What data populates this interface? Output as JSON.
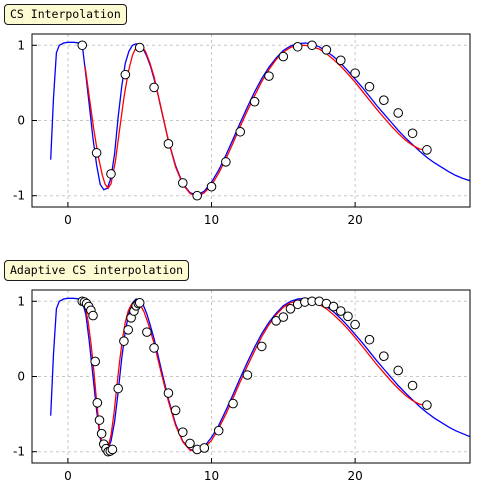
{
  "chart_data": [
    {
      "type": "line",
      "title": "CS Interpolation",
      "xlim": [
        -2.5,
        28
      ],
      "ylim": [
        -1.15,
        1.15
      ],
      "xticks": [
        0,
        10,
        20
      ],
      "xtick_labels": [
        "0",
        "10",
        "20"
      ],
      "yticks": [
        -1,
        0,
        1
      ],
      "ytick_labels": [
        "-1",
        "0",
        "1"
      ],
      "grid": true,
      "legend": "none",
      "colors": {
        "reference": "#0000ff",
        "interpolated": "#ff0000",
        "nodes": "#000000"
      },
      "series": [
        {
          "role": "reference",
          "x": [
            -1.2,
            -1.0,
            -0.8,
            -0.6,
            -0.3,
            0.0,
            0.4,
            0.8,
            1.0,
            1.25,
            1.5,
            1.75,
            2.0,
            2.25,
            2.5,
            2.75,
            3.0,
            3.25,
            3.5,
            3.75,
            4.0,
            4.25,
            4.5,
            4.75,
            5.0,
            5.25,
            5.5,
            5.75,
            6.0,
            6.25,
            6.5,
            6.75,
            7.0,
            7.5,
            8.0,
            8.5,
            9.0,
            9.5,
            10.0,
            10.5,
            11.0,
            11.5,
            12.0,
            12.5,
            13.0,
            13.5,
            14.0,
            14.5,
            15.0,
            15.5,
            16.0,
            16.5,
            17.0,
            17.5,
            18.0,
            18.5,
            19.0,
            19.5,
            20.0,
            20.5,
            21.0,
            21.5,
            22.0,
            22.5,
            23.0,
            23.5,
            24.0,
            24.5,
            25.0,
            25.5,
            26.0,
            26.5,
            27.0,
            27.5,
            28.0
          ],
          "y": [
            -0.52,
            0.3,
            0.9,
            1.0,
            1.03,
            1.04,
            1.04,
            1.03,
            1.0,
            0.6,
            0.19,
            -0.24,
            -0.59,
            -0.85,
            -0.92,
            -0.9,
            -0.76,
            -0.44,
            0.05,
            0.46,
            0.76,
            0.92,
            1.0,
            1.02,
            1.0,
            0.95,
            0.85,
            0.72,
            0.55,
            0.36,
            0.15,
            -0.06,
            -0.27,
            -0.6,
            -0.84,
            -0.96,
            -0.99,
            -0.94,
            -0.82,
            -0.66,
            -0.46,
            -0.25,
            -0.03,
            0.18,
            0.38,
            0.56,
            0.71,
            0.83,
            0.93,
            0.99,
            1.02,
            1.03,
            1.02,
            0.98,
            0.92,
            0.85,
            0.76,
            0.66,
            0.55,
            0.44,
            0.32,
            0.2,
            0.09,
            -0.02,
            -0.13,
            -0.23,
            -0.32,
            -0.41,
            -0.49,
            -0.56,
            -0.62,
            -0.68,
            -0.73,
            -0.77,
            -0.8
          ]
        },
        {
          "role": "interpolated",
          "x": [
            1.2,
            1.5,
            1.8,
            2.1,
            2.4,
            2.6,
            2.8,
            3.0,
            3.3,
            3.6,
            3.9,
            4.2,
            4.5,
            4.8,
            5.1,
            5.4,
            5.7,
            6.0,
            6.5,
            7.0,
            7.5,
            8.0,
            8.5,
            9.0,
            9.5,
            10.0,
            10.5,
            11.0,
            11.5,
            12.0,
            12.5,
            13.0,
            13.5,
            14.0,
            14.5,
            15.0,
            15.5,
            16.0,
            16.5,
            17.0,
            17.5,
            18.0,
            18.5,
            19.0,
            19.5,
            20.0,
            20.5,
            21.0,
            21.5,
            22.0,
            22.5,
            23.0,
            23.5,
            24.0,
            24.5,
            25.0
          ],
          "y": [
            0.72,
            0.3,
            -0.12,
            -0.47,
            -0.73,
            -0.85,
            -0.9,
            -0.84,
            -0.55,
            -0.12,
            0.3,
            0.64,
            0.87,
            0.99,
            1.0,
            0.92,
            0.77,
            0.58,
            0.16,
            -0.27,
            -0.62,
            -0.85,
            -0.97,
            -1.01,
            -0.96,
            -0.86,
            -0.7,
            -0.51,
            -0.3,
            -0.08,
            0.13,
            0.33,
            0.52,
            0.68,
            0.81,
            0.91,
            0.97,
            1.0,
            1.0,
            0.98,
            0.95,
            0.89,
            0.81,
            0.72,
            0.62,
            0.51,
            0.39,
            0.27,
            0.15,
            0.04,
            -0.07,
            -0.17,
            -0.26,
            -0.33,
            -0.38,
            -0.39
          ]
        },
        {
          "role": "nodes",
          "x": [
            1.0,
            2.0,
            3.0,
            4.0,
            5.0,
            6.0,
            7.0,
            8.0,
            9.0,
            10.0,
            11.0,
            12.0,
            13.0,
            14.0,
            15.0,
            16.0,
            17.0,
            18.0,
            19.0,
            20.0,
            21.0,
            22.0,
            23.0,
            24.0,
            25.0
          ],
          "y": [
            1.0,
            -0.43,
            -0.71,
            0.61,
            0.97,
            0.44,
            -0.31,
            -0.83,
            -1.0,
            -0.88,
            -0.55,
            -0.15,
            0.25,
            0.59,
            0.85,
            0.98,
            1.0,
            0.94,
            0.8,
            0.63,
            0.45,
            0.27,
            0.1,
            -0.17,
            -0.39
          ]
        }
      ]
    },
    {
      "type": "line",
      "title": "Adaptive CS interpolation",
      "xlim": [
        -2.5,
        28
      ],
      "ylim": [
        -1.15,
        1.15
      ],
      "xticks": [
        0,
        10,
        20
      ],
      "xtick_labels": [
        "0",
        "10",
        "20"
      ],
      "yticks": [
        -1,
        0,
        1
      ],
      "ytick_labels": [
        "-1",
        "0",
        "1"
      ],
      "grid": true,
      "legend": "none",
      "colors": {
        "reference": "#0000ff",
        "interpolated": "#ff0000",
        "nodes": "#000000"
      },
      "series": [
        {
          "role": "reference",
          "x": [
            -1.2,
            -1.0,
            -0.8,
            -0.6,
            -0.3,
            0.0,
            0.4,
            0.8,
            1.0,
            1.25,
            1.5,
            1.75,
            2.0,
            2.25,
            2.5,
            2.75,
            3.0,
            3.25,
            3.5,
            3.75,
            4.0,
            4.25,
            4.5,
            4.75,
            5.0,
            5.25,
            5.5,
            5.75,
            6.0,
            6.25,
            6.5,
            6.75,
            7.0,
            7.5,
            8.0,
            8.5,
            9.0,
            9.5,
            10.0,
            10.5,
            11.0,
            11.5,
            12.0,
            12.5,
            13.0,
            13.5,
            14.0,
            14.5,
            15.0,
            15.5,
            16.0,
            16.5,
            17.0,
            17.5,
            18.0,
            18.5,
            19.0,
            19.5,
            20.0,
            20.5,
            21.0,
            21.5,
            22.0,
            22.5,
            23.0,
            23.5,
            24.0,
            24.5,
            25.0,
            25.5,
            26.0,
            26.5,
            27.0,
            27.5,
            28.0
          ],
          "y": [
            -0.52,
            0.3,
            0.9,
            1.0,
            1.03,
            1.04,
            1.04,
            1.03,
            1.0,
            0.82,
            0.45,
            0.0,
            -0.45,
            -0.82,
            -0.99,
            -0.98,
            -0.86,
            -0.6,
            -0.2,
            0.25,
            0.6,
            0.85,
            0.98,
            1.03,
            1.02,
            0.95,
            0.83,
            0.67,
            0.5,
            0.3,
            0.1,
            -0.1,
            -0.3,
            -0.63,
            -0.86,
            -0.97,
            -0.99,
            -0.93,
            -0.81,
            -0.65,
            -0.45,
            -0.24,
            -0.02,
            0.19,
            0.39,
            0.57,
            0.72,
            0.84,
            0.94,
            1.0,
            1.03,
            1.04,
            1.03,
            0.99,
            0.93,
            0.86,
            0.77,
            0.67,
            0.56,
            0.45,
            0.33,
            0.21,
            0.1,
            -0.01,
            -0.12,
            -0.22,
            -0.31,
            -0.4,
            -0.48,
            -0.55,
            -0.61,
            -0.67,
            -0.72,
            -0.76,
            -0.8
          ]
        },
        {
          "role": "interpolated",
          "x": [
            1.0,
            1.2,
            1.4,
            1.6,
            1.8,
            2.0,
            2.2,
            2.4,
            2.6,
            2.8,
            3.0,
            3.2,
            3.4,
            3.6,
            3.8,
            4.0,
            4.2,
            4.4,
            4.6,
            4.8,
            5.0,
            5.3,
            5.6,
            6.0,
            6.5,
            7.0,
            7.5,
            8.0,
            8.5,
            9.0,
            9.5,
            10.0,
            10.5,
            11.0,
            11.5,
            12.0,
            12.5,
            13.0,
            13.5,
            14.0,
            14.5,
            15.0,
            15.5,
            16.0,
            16.5,
            17.0,
            17.5,
            18.0,
            18.5,
            19.0,
            19.5,
            20.0,
            20.5,
            21.0,
            21.5,
            22.0,
            22.5,
            23.0,
            23.5,
            24.0,
            24.5,
            25.0
          ],
          "y": [
            1.0,
            0.93,
            0.74,
            0.45,
            0.08,
            -0.33,
            -0.7,
            -0.93,
            -1.0,
            -0.95,
            -0.78,
            -0.5,
            -0.15,
            0.2,
            0.5,
            0.72,
            0.87,
            0.95,
            0.99,
            1.0,
            0.97,
            0.86,
            0.7,
            0.44,
            0.05,
            -0.33,
            -0.65,
            -0.87,
            -0.98,
            -1.0,
            -0.95,
            -0.85,
            -0.69,
            -0.5,
            -0.29,
            -0.07,
            0.14,
            0.34,
            0.53,
            0.69,
            0.82,
            0.92,
            0.98,
            1.01,
            1.02,
            1.0,
            0.96,
            0.9,
            0.82,
            0.73,
            0.63,
            0.52,
            0.4,
            0.28,
            0.16,
            0.05,
            -0.06,
            -0.16,
            -0.25,
            -0.32,
            -0.37,
            -0.39
          ]
        },
        {
          "role": "nodes",
          "x": [
            1.0,
            1.15,
            1.3,
            1.45,
            1.6,
            1.75,
            1.9,
            2.05,
            2.2,
            2.35,
            2.5,
            2.65,
            2.8,
            2.95,
            3.1,
            3.5,
            3.9,
            4.2,
            4.4,
            4.6,
            4.75,
            4.9,
            5.0,
            5.5,
            6.0,
            7.0,
            7.5,
            8.0,
            8.5,
            9.0,
            9.5,
            10.5,
            11.5,
            12.5,
            13.5,
            14.5,
            15.0,
            15.5,
            16.0,
            16.5,
            17.0,
            17.5,
            18.0,
            18.5,
            19.0,
            19.5,
            20.0,
            21.0,
            22.0,
            23.0,
            24.0,
            25.0
          ],
          "y": [
            1.0,
            0.99,
            0.97,
            0.93,
            0.88,
            0.81,
            0.2,
            -0.35,
            -0.58,
            -0.76,
            -0.9,
            -0.96,
            -1.0,
            -0.99,
            -0.97,
            -0.16,
            0.47,
            0.62,
            0.78,
            0.87,
            0.94,
            0.97,
            0.98,
            0.59,
            0.38,
            -0.22,
            -0.45,
            -0.74,
            -0.89,
            -0.97,
            -0.95,
            -0.72,
            -0.36,
            0.02,
            0.4,
            0.74,
            0.79,
            0.9,
            0.96,
            0.99,
            1.0,
            1.0,
            0.97,
            0.93,
            0.87,
            0.8,
            0.69,
            0.49,
            0.27,
            0.08,
            -0.12,
            -0.38
          ]
        }
      ]
    }
  ]
}
